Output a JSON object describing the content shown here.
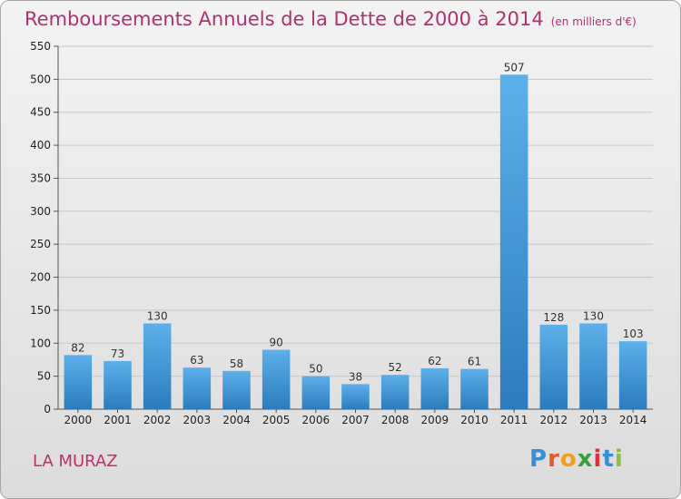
{
  "title": "Remboursements Annuels de la Dette de 2000 à 2014",
  "unit": "(en milliers d'€)",
  "commune": "LA MURAZ",
  "logo": {
    "text": "Proxiti",
    "letter_colors": [
      "#3a8fd4",
      "#e25a2a",
      "#f0a020",
      "#3aa03a",
      "#e0303a",
      "#3a8fd4",
      "#8ac03a"
    ]
  },
  "colors": {
    "bar_top": "#5db0ea",
    "bar_bottom": "#2c7cbd",
    "grid": "#c8c8c8",
    "title": "#b03070"
  },
  "chart_data": {
    "type": "bar",
    "title": "Remboursements Annuels de la Dette de 2000 à 2014",
    "categories": [
      "2000",
      "2001",
      "2002",
      "2003",
      "2004",
      "2005",
      "2006",
      "2007",
      "2008",
      "2009",
      "2010",
      "2011",
      "2012",
      "2013",
      "2014"
    ],
    "values": [
      82,
      73,
      130,
      63,
      58,
      90,
      50,
      38,
      52,
      62,
      61,
      507,
      128,
      130,
      103
    ],
    "ylim": [
      0,
      550
    ],
    "yticks": [
      0,
      50,
      100,
      150,
      200,
      250,
      300,
      350,
      400,
      450,
      500,
      550
    ],
    "grid": true,
    "data_labels": true
  }
}
